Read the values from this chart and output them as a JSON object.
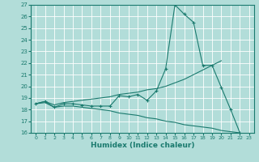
{
  "xlabel": "Humidex (Indice chaleur)",
  "x_values": [
    0,
    1,
    2,
    3,
    4,
    5,
    6,
    7,
    8,
    9,
    10,
    11,
    12,
    13,
    14,
    15,
    16,
    17,
    18,
    19,
    20,
    21,
    22,
    23
  ],
  "line1_y": [
    18.5,
    18.7,
    18.2,
    18.5,
    18.5,
    18.4,
    18.3,
    18.3,
    18.3,
    19.2,
    19.1,
    19.3,
    18.8,
    19.6,
    21.5,
    27.0,
    26.2,
    25.5,
    21.8,
    21.8,
    19.9,
    18.0,
    16.0,
    null
  ],
  "line2_y": [
    18.5,
    18.7,
    18.4,
    18.6,
    18.7,
    18.8,
    18.9,
    19.0,
    19.1,
    19.3,
    19.4,
    19.5,
    19.7,
    19.8,
    20.0,
    20.3,
    20.6,
    21.0,
    21.4,
    21.8,
    22.2,
    null,
    null,
    null
  ],
  "line3_y": [
    18.5,
    18.6,
    18.2,
    18.3,
    18.3,
    18.2,
    18.1,
    18.0,
    17.9,
    17.7,
    17.6,
    17.5,
    17.3,
    17.2,
    17.0,
    16.9,
    16.7,
    16.6,
    16.5,
    16.4,
    16.2,
    16.1,
    16.0,
    null
  ],
  "line_color": "#1a7a6e",
  "bg_color": "#b2ddd9",
  "grid_color": "#ffffff",
  "ylim": [
    16,
    27
  ],
  "xlim": [
    -0.5,
    23.5
  ],
  "yticks": [
    16,
    17,
    18,
    19,
    20,
    21,
    22,
    23,
    24,
    25,
    26,
    27
  ],
  "xticks": [
    0,
    1,
    2,
    3,
    4,
    5,
    6,
    7,
    8,
    9,
    10,
    11,
    12,
    13,
    14,
    15,
    16,
    17,
    18,
    19,
    20,
    21,
    22,
    23
  ]
}
